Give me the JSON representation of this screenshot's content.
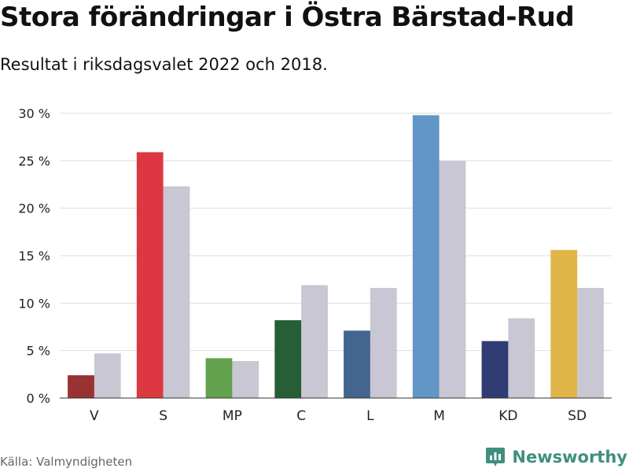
{
  "header": {
    "title": "Stora förändringar i Östra Bärstad-Rud",
    "subtitle": "Resultat i riksdagsvalet 2022 och 2018."
  },
  "footer": {
    "source": "Källa: Valmyndigheten",
    "brand": "Newsworthy",
    "brand_color": "#3f8f7f"
  },
  "chart_data": {
    "type": "bar",
    "title": "Stora förändringar i Östra Bärstad-Rud",
    "subtitle": "Resultat i riksdagsvalet 2022 och 2018.",
    "xlabel": "",
    "ylabel": "",
    "ylim": [
      0,
      30
    ],
    "grid": true,
    "yticks": [
      0,
      5,
      10,
      15,
      20,
      25,
      30
    ],
    "ytick_labels": [
      "0 %",
      "5 %",
      "10 %",
      "15 %",
      "20 %",
      "25 %",
      "30 %"
    ],
    "categories": [
      "V",
      "S",
      "MP",
      "C",
      "L",
      "M",
      "KD",
      "SD"
    ],
    "series": [
      {
        "name": "2022",
        "values": [
          2.4,
          25.9,
          4.2,
          8.2,
          7.1,
          29.8,
          6.0,
          15.6
        ],
        "colors": [
          "#993333",
          "#dd3842",
          "#64a14f",
          "#265e35",
          "#43658f",
          "#6196c6",
          "#313c74",
          "#dfb548"
        ]
      },
      {
        "name": "2018",
        "values": [
          4.7,
          22.3,
          3.9,
          11.9,
          11.6,
          25.0,
          8.4,
          11.6
        ],
        "color": "#c8c7d3"
      }
    ]
  }
}
